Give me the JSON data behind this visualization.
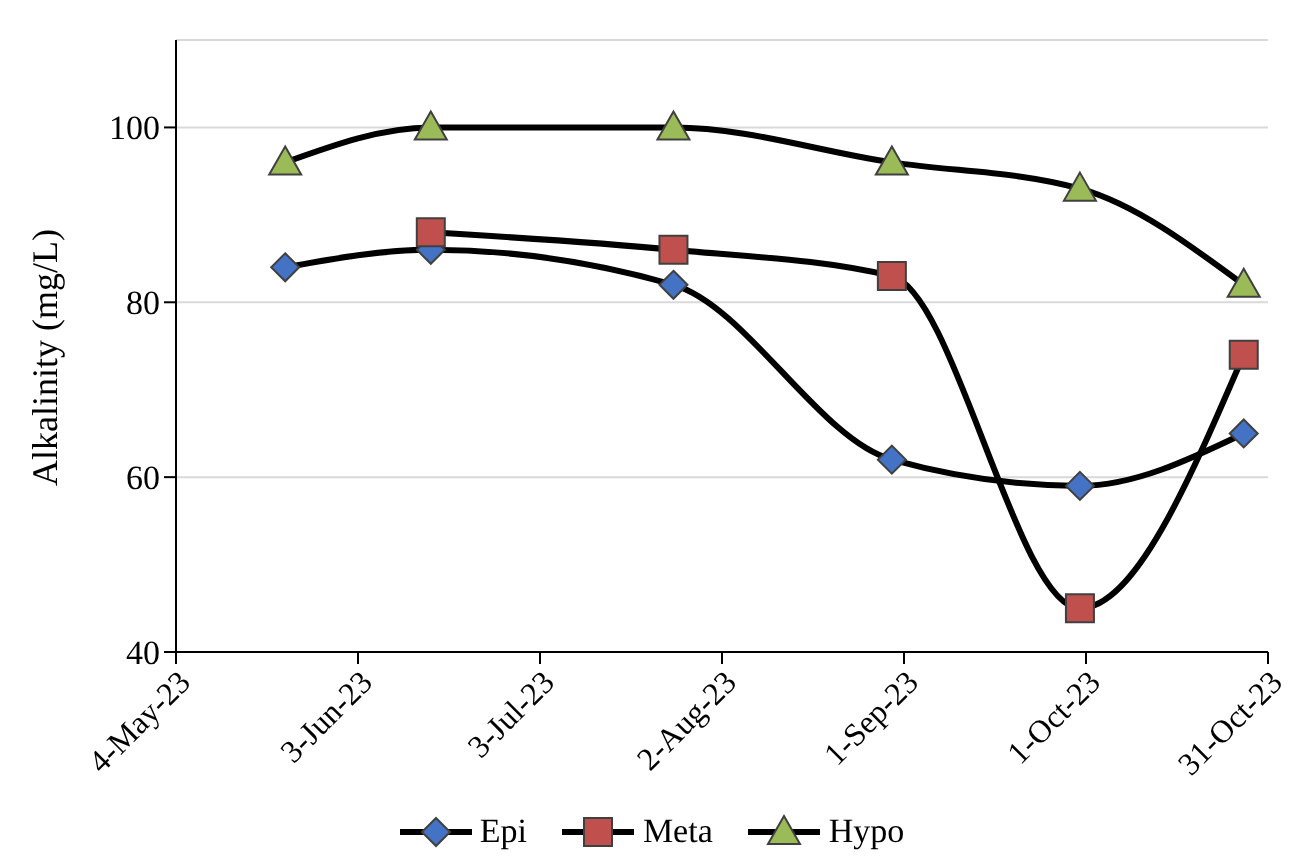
{
  "chart_data": {
    "type": "line",
    "ylabel": "Alkalinity (mg/L)",
    "x": [
      "2023-05-22",
      "2023-06-15",
      "2023-07-25",
      "2023-08-30",
      "2023-09-30",
      "2023-10-27"
    ],
    "series": [
      {
        "name": "Epi",
        "color": "#4472c4",
        "marker": "diamond",
        "values": [
          84,
          86,
          82,
          62,
          59,
          65
        ]
      },
      {
        "name": "Meta",
        "color": "#c0504d",
        "marker": "square",
        "values": [
          null,
          88,
          86,
          83,
          45,
          74
        ]
      },
      {
        "name": "Hypo",
        "color": "#9bbb59",
        "marker": "triangle",
        "values": [
          96,
          100,
          100,
          96,
          93,
          82
        ]
      }
    ],
    "xlim": [
      "2023-05-04",
      "2023-10-31"
    ],
    "xticks": [
      {
        "value": "2023-05-04",
        "label": "4-May-23"
      },
      {
        "value": "2023-06-03",
        "label": "3-Jun-23"
      },
      {
        "value": "2023-07-03",
        "label": "3-Jul-23"
      },
      {
        "value": "2023-08-02",
        "label": "2-Aug-23"
      },
      {
        "value": "2023-09-01",
        "label": "1-Sep-23"
      },
      {
        "value": "2023-10-01",
        "label": "1-Oct-23"
      },
      {
        "value": "2023-10-31",
        "label": "31-Oct-23"
      }
    ],
    "ylim": [
      40,
      110
    ],
    "yticks": [
      40,
      60,
      80,
      100
    ],
    "grid": "y",
    "legend": "bottom"
  }
}
